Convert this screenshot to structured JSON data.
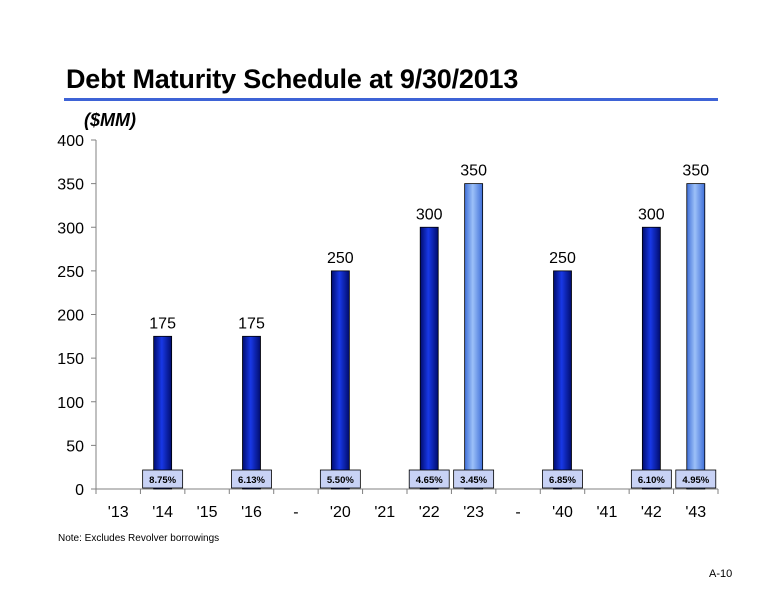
{
  "slide": {
    "title": "Debt Maturity Schedule at 9/30/2013",
    "unit_label": "($MM)",
    "note": "Note:  Excludes Revolver borrowings",
    "page_number": "A-10"
  },
  "colors": {
    "dark_bar": "#1028c8",
    "light_bar": "#6fa0ee",
    "rate_box": "#c8d2f5",
    "rule": "#3e63d6"
  },
  "chart_data": {
    "type": "bar",
    "title": "",
    "xlabel": "",
    "ylabel": "",
    "ylim": [
      0,
      400
    ],
    "yticks": [
      0,
      50,
      100,
      150,
      200,
      250,
      300,
      350,
      400
    ],
    "grid": false,
    "categories": [
      "'13",
      "'14",
      "'15",
      "'16",
      "-",
      "'20",
      "'21",
      "'22",
      "'23",
      "-",
      "'40",
      "'41",
      "'42",
      "'43"
    ],
    "values": [
      null,
      175,
      null,
      175,
      null,
      250,
      null,
      300,
      350,
      null,
      250,
      null,
      300,
      350
    ],
    "bar_style": [
      null,
      "dark",
      null,
      "dark",
      null,
      "dark",
      null,
      "dark",
      "light",
      null,
      "dark",
      null,
      "dark",
      "light"
    ],
    "rate_labels": [
      null,
      "8.75%",
      null,
      "6.13%",
      null,
      "5.50%",
      null,
      "4.65%",
      "3.45%",
      null,
      "6.85%",
      null,
      "6.10%",
      "4.95%"
    ]
  }
}
